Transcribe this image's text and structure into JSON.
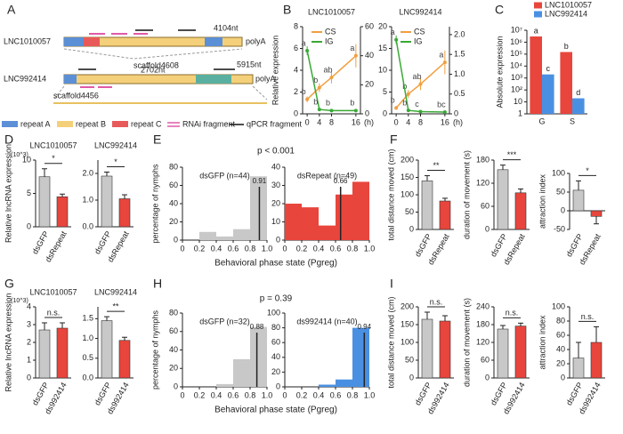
{
  "diagram": {
    "panel": "A",
    "transcripts": [
      {
        "name": "LNC1010057",
        "lengths": [
          "4104nt"
        ],
        "tail": "polyA",
        "scaffold": "scaffold4608"
      },
      {
        "name": "LNC992414",
        "lengths": [
          "2702nt",
          "5915nt"
        ],
        "tail": "polyA",
        "scaffold": "scaffold4456"
      }
    ],
    "legend": [
      "repeat A",
      "repeat B",
      "repeat C",
      "RNAi fragment",
      "qPCR fragment"
    ]
  },
  "chart_data": [
    {
      "type": "line",
      "panel": "B",
      "title": "LNC1010057",
      "ylabel": "Relative expression",
      "xlabel": "(h)",
      "x": [
        0,
        4,
        8,
        16
      ],
      "xlim": [
        -1.5,
        17.5
      ],
      "xticks": [
        0,
        4,
        8,
        16
      ],
      "ylim": [
        0,
        8
      ],
      "yticks": [
        0,
        2,
        4,
        6,
        8
      ],
      "y2lim": [
        0,
        60
      ],
      "y2ticks": [
        0,
        20,
        40,
        60
      ],
      "series": [
        {
          "name": "CS",
          "color": "#f0a040",
          "axis": "y2",
          "values": [
            10,
            18,
            25,
            40
          ],
          "errors": [
            2,
            3,
            4,
            8
          ],
          "annotations": [
            "b",
            "b",
            "ab",
            "a"
          ]
        },
        {
          "name": "IG",
          "color": "#3aa935",
          "values": [
            5.8,
            0.4,
            0.3,
            0.3
          ],
          "errors": [
            0.4,
            0.1,
            0.1,
            0.1
          ],
          "annotations": [
            "a",
            "b",
            "b",
            "b"
          ]
        }
      ]
    },
    {
      "type": "line",
      "title": "LNC992414",
      "xlabel": "(h)",
      "x": [
        0,
        4,
        8,
        16
      ],
      "xlim": [
        -1.5,
        17.5
      ],
      "xticks": [
        0,
        4,
        8,
        16
      ],
      "ylim": [
        0,
        20
      ],
      "yticks": [
        0,
        5,
        10,
        15,
        20
      ],
      "y2lim": [
        0,
        2.2
      ],
      "y2ticks": [
        0,
        0.5,
        {
          "value": 1,
          "label": "1.0"
        },
        1.5,
        {
          "value": 2,
          "label": "2.0"
        }
      ],
      "series": [
        {
          "name": "CS",
          "color": "#f0a040",
          "axis": "y2",
          "values": [
            0.15,
            0.5,
            0.75,
            1.3
          ],
          "errors": [
            0.05,
            0.1,
            0.15,
            0.3
          ],
          "annotations": [
            "b",
            "b",
            "ab",
            "a"
          ]
        },
        {
          "name": "IG",
          "color": "#3aa935",
          "values": [
            17,
            0.8,
            0.5,
            0.4
          ],
          "errors": [
            1,
            0.2,
            0.1,
            0.1
          ],
          "annotations": [
            "a",
            "b",
            "c",
            "bc"
          ]
        }
      ]
    },
    {
      "type": "bar",
      "panel": "C",
      "ylabel": "Absolute expression",
      "log_scale": true,
      "categories": [
        "G",
        "S"
      ],
      "ylim": [
        1,
        10000000
      ],
      "yticks": [
        1,
        10,
        {
          "value": 100,
          "label": "10²"
        },
        {
          "value": 1000,
          "label": "10³"
        },
        {
          "value": 10000,
          "label": "10⁴"
        },
        {
          "value": 100000,
          "label": "10⁵"
        },
        {
          "value": 1000000,
          "label": "10⁶"
        },
        {
          "value": 10000000,
          "label": "10⁷"
        }
      ],
      "series": [
        {
          "name": "LNC1010057",
          "color": "#e8453c",
          "values": [
            3000000,
            150000
          ],
          "annotations": [
            "a",
            "b"
          ]
        },
        {
          "name": "LNC992414",
          "color": "#4a90e2",
          "values": [
            2000,
            20
          ],
          "annotations": [
            "c",
            "d"
          ]
        }
      ]
    },
    {
      "type": "bar",
      "panel": "D",
      "title": "LNC1010057",
      "ylabel": "Relative lncRNA expression",
      "annotation": "(10^3)",
      "categories": [
        "dsGFP",
        "dsRepeat"
      ],
      "values": [
        7.5,
        4.5
      ],
      "errors": [
        1.2,
        0.4
      ],
      "colors": [
        "#c8c8c8",
        "#e8453c"
      ],
      "ylim": [
        0,
        10
      ],
      "yticks": [
        0,
        5,
        10
      ],
      "sig": "*"
    },
    {
      "type": "bar",
      "title": "LNC992414",
      "categories": [
        "dsGFP",
        "dsRepeat"
      ],
      "values": [
        1.9,
        1.05
      ],
      "errors": [
        0.15,
        0.15
      ],
      "colors": [
        "#c8c8c8",
        "#e8453c"
      ],
      "ylim": [
        0,
        2.5
      ],
      "yticks": [
        {
          "value": 0,
          "label": "0.0"
        },
        {
          "value": 1,
          "label": "1.0"
        },
        {
          "value": 2,
          "label": "2.0"
        }
      ],
      "sig": "*"
    },
    {
      "type": "histogram",
      "panel": "E",
      "title": "dsGFP (n=44)",
      "ylabel": "percentage of nymphs",
      "xlabel": "Behavioral phase state (Pgreg)",
      "annotation": "p < 0.001",
      "bins": [
        0,
        0.2,
        0.4,
        0.6,
        0.8,
        1
      ],
      "values": [
        0,
        9,
        4,
        12,
        70
      ],
      "color": "#c8c8c8",
      "median": 0.91,
      "xlim": [
        0,
        1
      ],
      "xticks": [
        0,
        0.2,
        0.4,
        0.6,
        0.8,
        {
          "value": 1,
          "label": "1.0"
        }
      ],
      "ylim": [
        0,
        80
      ],
      "yticks": [
        0,
        20,
        40,
        60,
        80
      ]
    },
    {
      "type": "histogram",
      "title": "dsRepeat (n=49)",
      "bins": [
        0,
        0.2,
        0.4,
        0.6,
        0.8,
        1
      ],
      "values": [
        20,
        18,
        8,
        25,
        32
      ],
      "color": "#e8453c",
      "median": 0.66,
      "xlim": [
        0,
        1
      ],
      "xticks": [
        0,
        0.2,
        0.4,
        0.6,
        0.8,
        {
          "value": 1,
          "label": "1.0"
        }
      ],
      "ylim": [
        0,
        40
      ],
      "yticks": [
        0,
        10,
        20,
        30,
        40
      ]
    },
    {
      "type": "bar",
      "panel": "F",
      "ylabel": "total distance moved (cm)",
      "categories": [
        "dsGFP",
        "dsRepeat"
      ],
      "values": [
        140,
        82
      ],
      "errors": [
        15,
        8
      ],
      "colors": [
        "#c8c8c8",
        "#e8453c"
      ],
      "ylim": [
        0,
        200
      ],
      "yticks": [
        0,
        50,
        100,
        150,
        200
      ],
      "sig": "**"
    },
    {
      "type": "bar",
      "ylabel": "duration of movement (s)",
      "categories": [
        "dsGFP",
        "dsRepeat"
      ],
      "values": [
        155,
        95
      ],
      "errors": [
        12,
        10
      ],
      "colors": [
        "#c8c8c8",
        "#e8453c"
      ],
      "ylim": [
        0,
        180
      ],
      "yticks": [
        0,
        60,
        120,
        180
      ],
      "sig": "***"
    },
    {
      "type": "bar",
      "ylabel": "attraction index",
      "categories": [
        "dsGFP",
        "dsRepeat"
      ],
      "values": [
        55,
        -15
      ],
      "errors": [
        25,
        20
      ],
      "colors": [
        "#c8c8c8",
        "#e8453c"
      ],
      "ylim": [
        -50,
        100
      ],
      "yticks": [
        -50,
        0,
        50,
        100
      ],
      "sig": "*"
    },
    {
      "type": "bar",
      "panel": "G",
      "title": "LNC1010057",
      "ylabel": "Relative lncRNA expression",
      "annotation": "(10^3)",
      "categories": [
        "dsGFP",
        "ds992414"
      ],
      "values": [
        2.7,
        2.8
      ],
      "errors": [
        0.4,
        0.3
      ],
      "colors": [
        "#c8c8c8",
        "#e8453c"
      ],
      "ylim": [
        0,
        4
      ],
      "yticks": [
        0,
        1,
        2,
        3,
        4
      ],
      "sig": "n.s."
    },
    {
      "type": "bar",
      "title": "LNC992414",
      "categories": [
        "dsGFP",
        "ds992414"
      ],
      "values": [
        1.45,
        0.95
      ],
      "errors": [
        0.1,
        0.08
      ],
      "colors": [
        "#c8c8c8",
        "#e8453c"
      ],
      "ylim": [
        0,
        1.8
      ],
      "yticks": [
        {
          "value": 0,
          "label": "0.0"
        },
        0.5,
        {
          "value": 1,
          "label": "1.0"
        },
        1.5
      ],
      "sig": "**"
    },
    {
      "type": "histogram",
      "panel": "H",
      "title": "dsGFP (n=32)",
      "ylabel": "percentage of nymphs",
      "xlabel": "Behavioral phase state (Pgreg)",
      "annotation": "p = 0.39",
      "bins": [
        0,
        0.2,
        0.4,
        0.6,
        0.8,
        1
      ],
      "values": [
        0,
        0,
        3,
        30,
        65
      ],
      "color": "#c8c8c8",
      "median": 0.88,
      "xlim": [
        0,
        1
      ],
      "xticks": [
        0,
        0.2,
        0.4,
        0.6,
        0.8,
        {
          "value": 1,
          "label": "1.0"
        }
      ],
      "ylim": [
        0,
        80
      ],
      "yticks": [
        0,
        20,
        40,
        60,
        80
      ]
    },
    {
      "type": "histogram",
      "title": "ds992414 (n=40)",
      "bins": [
        0,
        0.2,
        0.4,
        0.6,
        0.8,
        1
      ],
      "values": [
        0,
        0,
        3,
        10,
        80
      ],
      "color": "#4a90e2",
      "median": 0.94,
      "xlim": [
        0,
        1
      ],
      "xticks": [
        0,
        0.2,
        0.4,
        0.6,
        0.8,
        {
          "value": 1,
          "label": "1.0"
        }
      ],
      "ylim": [
        0,
        100
      ],
      "yticks": [
        0,
        20,
        40,
        60,
        80,
        100
      ]
    },
    {
      "type": "bar",
      "panel": "I",
      "ylabel": "total distance moved (cm)",
      "categories": [
        "dsGFP",
        "ds992414"
      ],
      "values": [
        165,
        160
      ],
      "errors": [
        20,
        15
      ],
      "colors": [
        "#c8c8c8",
        "#e8453c"
      ],
      "ylim": [
        0,
        200
      ],
      "yticks": [
        0,
        50,
        100,
        150,
        200
      ],
      "sig": "n.s."
    },
    {
      "type": "bar",
      "ylabel": "duration of movement (s)",
      "categories": [
        "dsGFP",
        "ds992414"
      ],
      "values": [
        165,
        175
      ],
      "errors": [
        12,
        10
      ],
      "colors": [
        "#c8c8c8",
        "#e8453c"
      ],
      "ylim": [
        0,
        240
      ],
      "yticks": [
        0,
        60,
        120,
        180,
        240
      ],
      "sig": "n.s."
    },
    {
      "type": "bar",
      "ylabel": "attraction index",
      "categories": [
        "dsGFP",
        "ds992414"
      ],
      "values": [
        28,
        50
      ],
      "errors": [
        22,
        22
      ],
      "colors": [
        "#c8c8c8",
        "#e8453c"
      ],
      "ylim": [
        0,
        100
      ],
      "yticks": [
        0,
        20,
        40,
        60,
        80,
        100
      ],
      "sig": "n.s."
    }
  ]
}
